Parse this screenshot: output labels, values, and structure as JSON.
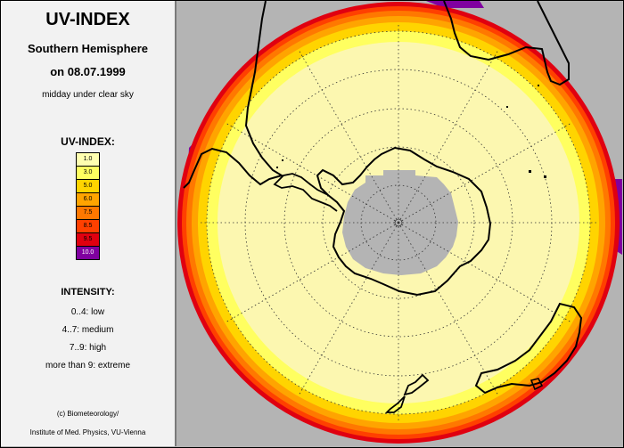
{
  "legend": {
    "title": "UV-INDEX",
    "subtitle": "Southern Hemisphere",
    "date": "on 08.07.1999",
    "note": "midday under clear sky",
    "scale_title": "UV-INDEX:",
    "scale": [
      {
        "label": "1.0",
        "color": "#ffffb0"
      },
      {
        "label": "3.0",
        "color": "#ffff60"
      },
      {
        "label": "5.0",
        "color": "#ffd400"
      },
      {
        "label": "6.0",
        "color": "#ffa400"
      },
      {
        "label": "7.5",
        "color": "#ff7800"
      },
      {
        "label": "8.5",
        "color": "#ff4000"
      },
      {
        "label": "9.5",
        "color": "#e00010"
      },
      {
        "label": "10.0",
        "color": "#8000a0"
      }
    ],
    "intensity_title": "INTENSITY:",
    "intensity": [
      "0..4: low",
      "4..7: medium",
      "7..9: high",
      "more than 9: extreme"
    ],
    "credit_line1": "(c) Biometeorology/",
    "credit_line2": "Institute of Med. Physics, VU-Vienna"
  },
  "map": {
    "projection": "polar stereographic, South Pole centered",
    "background_color": "#b4b4b4",
    "pole_night_color": "#b4b4b4",
    "coastline_color": "#000000",
    "graticule": "dotted"
  }
}
